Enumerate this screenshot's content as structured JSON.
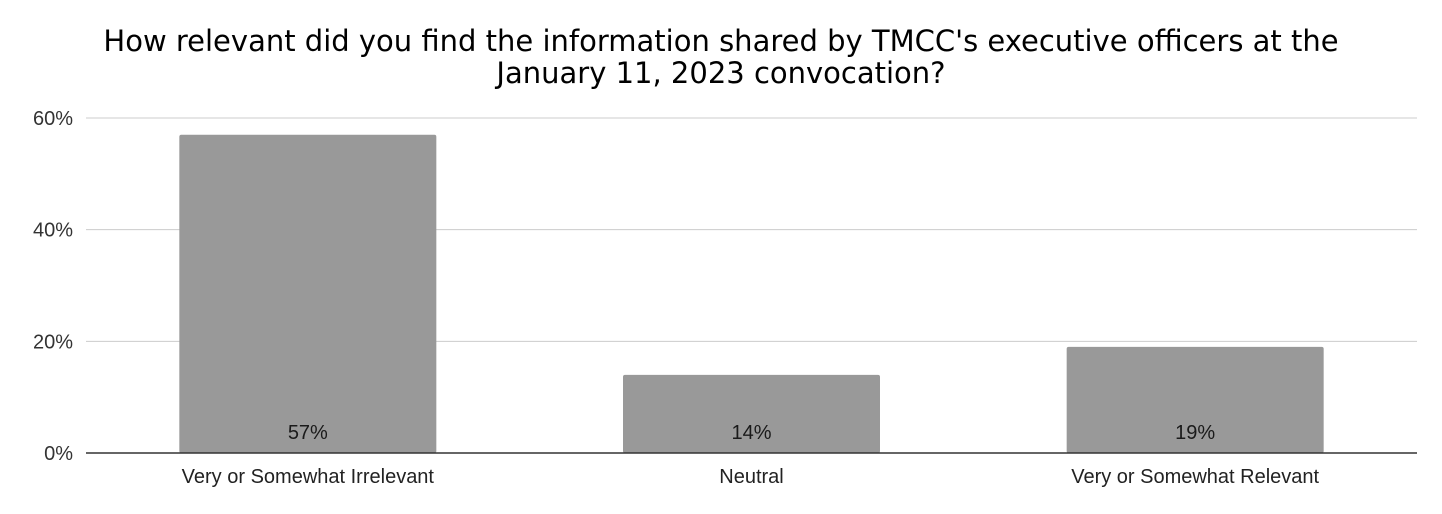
{
  "chart_data": {
    "type": "bar",
    "title_lines": [
      "How relevant did you find the information shared by TMCC's executive officers at the",
      "January 11, 2023 convocation?"
    ],
    "categories": [
      "Very or Somewhat Irrelevant",
      "Neutral",
      "Very or Somewhat Relevant"
    ],
    "values": [
      57,
      14,
      19
    ],
    "data_labels": [
      "57%",
      "14%",
      "19%"
    ],
    "y_ticks": [
      {
        "value": 0,
        "label": "0%"
      },
      {
        "value": 20,
        "label": "20%"
      },
      {
        "value": 40,
        "label": "40%"
      },
      {
        "value": 60,
        "label": "60%"
      }
    ],
    "ylim": [
      0,
      60
    ],
    "xlabel": "",
    "ylabel": "",
    "grid": true,
    "legend": "none",
    "bar_color": "#999999",
    "grid_color": "#cccccc",
    "axis_color": "#333333"
  }
}
